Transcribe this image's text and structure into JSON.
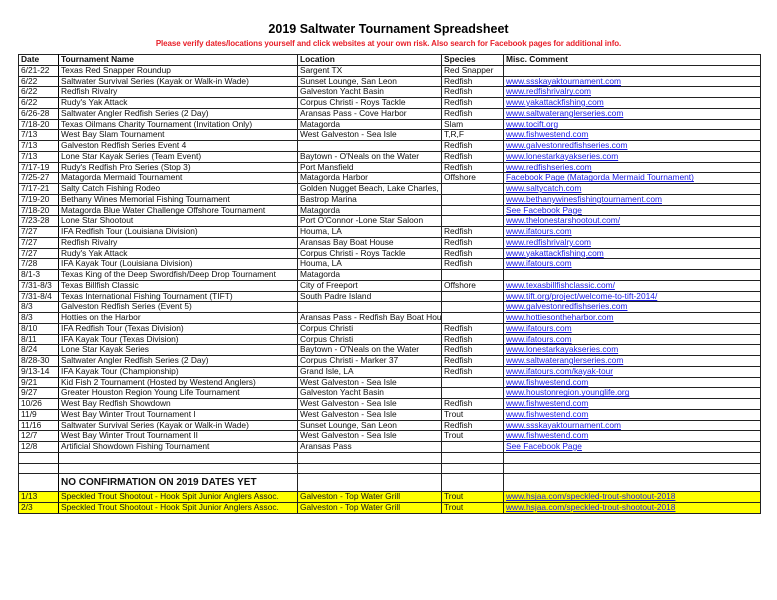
{
  "title": "2019 Saltwater Tournament Spreadsheet",
  "subtitle": "Please verify dates/locations yourself and click websites at your own risk. Also search for Facebook pages for additional info.",
  "colors": {
    "subtitle": "#e8202a",
    "link": "#1a1ae6",
    "highlight": "#ffff00"
  },
  "columns": [
    "Date",
    "Tournament Name",
    "Location",
    "Species",
    "Misc. Comment"
  ],
  "rows": [
    [
      "6/21-22",
      "Texas Red Snapper Roundup",
      "Sargent TX",
      "Red Snapper",
      ""
    ],
    [
      "6/22",
      "Saltwater Survival Series (Kayak or Walk-in Wade)",
      "Sunset Lounge, San Leon",
      "Redfish",
      "www.ssskayaktournament.com"
    ],
    [
      "6/22",
      "Redfish Rivalry",
      "Galveston Yacht Basin",
      "Redfish",
      "www.redfishrivalry.com"
    ],
    [
      "6/22",
      "Rudy's Yak Attack",
      "Corpus Christi - Roys Tackle",
      "Redfish",
      "www.yakattackfishing.com"
    ],
    [
      "6/26-28",
      "Saltwater Angler Redfish Series (2 Day)",
      "Aransas Pass - Cove Harbor",
      "Redfish",
      "www.saltwateranglerseries.com"
    ],
    [
      "7/18-20",
      "Texas Oilmans Charity Tournament (Invitation Only)",
      "Matagorda",
      "Slam",
      "www.tocift.org"
    ],
    [
      "7/13",
      "West Bay Slam Tournament",
      "West Galveston - Sea Isle",
      "T,R,F",
      "www.fishwestend.com"
    ],
    [
      "7/13",
      "Galveston Redfish Series Event 4",
      "",
      "Redfish",
      "www.galvestonredfishseries.com"
    ],
    [
      "7/13",
      "Lone Star Kayak Series (Team Event)",
      "Baytown - O'Neals on the Water",
      "Redfish",
      "www.lonestarkayakseries.com"
    ],
    [
      "7/17-19",
      "Rudy's Redfish Pro Series (Stop 3)",
      "Port Mansfield",
      "Redfish",
      "www.redfishseries.com"
    ],
    [
      "7/25-27",
      "Matagorda Mermaid Tournament",
      "Matagorda Harbor",
      "Offshore",
      "Facebook Page (Matagorda Mermaid Tournament)"
    ],
    [
      "7/17-21",
      "Salty Catch Fishing Rodeo",
      "Golden Nugget Beach, Lake Charles, LA",
      "",
      "www.saltycatch.com"
    ],
    [
      "7/19-20",
      "Bethany Wines Memorial Fishing Tournament",
      "Bastrop Marina",
      "",
      "www.bethanywinesfishingtournament.com"
    ],
    [
      "7/18-20",
      "Matagorda Blue Water Challenge Offshore Tournament",
      "Matagorda",
      "",
      "See Facebook Page"
    ],
    [
      "7/23-28",
      "Lone Star Shootout",
      "Port O'Connor -Lone Star Saloon",
      "",
      "www.thelonestarshootout.com/"
    ],
    [
      "7/27",
      "IFA Redfish Tour (Louisiana Division)",
      "Houma, LA",
      "Redfish",
      "www.ifatours.com"
    ],
    [
      "7/27",
      "Redfish Rivalry",
      "Aransas Bay Boat House",
      "Redfish",
      "www.redfishrivalry.com"
    ],
    [
      "7/27",
      "Rudy's Yak Attack",
      "Corpus Christi - Roys Tackle",
      "Redfish",
      "www.yakattackfishing.com"
    ],
    [
      "7/28",
      "IFA Kayak Tour (Louisiana Division)",
      "Houma, LA",
      "Redfish",
      "www.ifatours.com"
    ],
    [
      "8/1-3",
      "Texas King of the Deep Swordfish/Deep Drop Tournament",
      "Matagorda",
      "",
      ""
    ],
    [
      "7/31-8/3",
      "Texas Billfish Classic",
      "City of Freeport",
      "Offshore",
      "www.texasbillfishclassic.com/"
    ],
    [
      "7/31-8/4",
      "Texas International Fishing Tournament (TIFT)",
      "South Padre Island",
      "",
      "www.tift.org/project/welcome-to-tift-2014/"
    ],
    [
      "8/3",
      "Galveston Redfish Series (Event 5)",
      "",
      "",
      "www.galvestonredfishseries.com"
    ],
    [
      "8/3",
      "Hotties on the Harbor",
      "Aransas Pass - Redfish Bay Boat House",
      "",
      "www.hottiesontheharbor.com"
    ],
    [
      "8/10",
      "IFA Redfish Tour (Texas Division)",
      "Corpus Christi",
      "Redfish",
      "www.ifatours.com"
    ],
    [
      "8/11",
      "IFA Kayak Tour (Texas Division)",
      "Corpus Christi",
      "Redfish",
      "www.ifatours.com"
    ],
    [
      "8/24",
      "Lone Star Kayak Series",
      "Baytown - O'Neals on the Water",
      "Redfish",
      "www.lonestarkayakseries.com"
    ],
    [
      "8/28-30",
      "Saltwater Angler Redfish Series (2 Day)",
      "Corpus Christi - Marker 37",
      "Redfish",
      "www.saltwateranglerseries.com"
    ],
    [
      "9/13-14",
      "IFA Kayak Tour (Championship)",
      "Grand Isle, LA",
      "Redfish",
      "www.ifatours.com/kayak-tour"
    ],
    [
      "9/21",
      "Kid Fish 2 Tournament (Hosted by Westend Anglers)",
      "West Galveston - Sea Isle",
      "",
      "www.fishwestend.com"
    ],
    [
      "9/27",
      "Greater Houston Region Young Life Tournament",
      "Galveston Yacht Basin",
      "",
      "www.houstonregion.younglife.org"
    ],
    [
      "10/26",
      "West Bay Redfish Showdown",
      "West Galveston - Sea Isle",
      "Redfish",
      "www.fishwestend.com"
    ],
    [
      "11/9",
      "West Bay Winter Trout Tournament I",
      "West Galveston - Sea Isle",
      "Trout",
      "www.fishwestend.com"
    ],
    [
      "11/16",
      "Saltwater Survival Series (Kayak or Walk-in Wade)",
      "Sunset Lounge, San Leon",
      "Redfish",
      "www.ssskayaktournament.com"
    ],
    [
      "12/7",
      "West Bay Winter Trout Tournament II",
      "West Galveston - Sea Isle",
      "Trout",
      "www.fishwestend.com"
    ],
    [
      "12/8",
      "Artificial Showdown Fishing Tournament",
      "Aransas Pass",
      "",
      "See Facebook Page"
    ],
    [
      "",
      "",
      "",
      "",
      ""
    ],
    [
      "",
      "",
      "",
      "",
      ""
    ]
  ],
  "note": "NO CONFIRMATION ON 2019 DATES YET",
  "unconfirmed_rows": [
    [
      "1/13",
      "Speckled Trout Shootout - Hook Spit Junior Anglers Assoc.",
      "Galveston - Top Water Grill",
      "Trout",
      "www.hsjaa.com/speckled-trout-shootout-2018"
    ],
    [
      "2/3",
      "Speckled Trout Shootout - Hook Spit Junior Anglers Assoc.",
      "Galveston - Top Water Grill",
      "Trout",
      "www.hsjaa.com/speckled-trout-shootout-2018"
    ]
  ]
}
